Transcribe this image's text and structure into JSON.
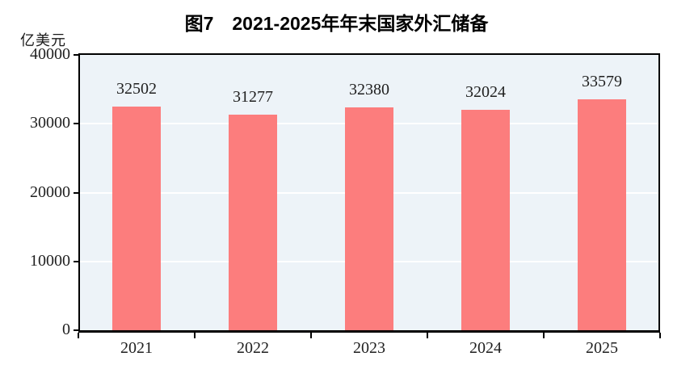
{
  "figure": {
    "title": "图7　2021-2025年年末国家外汇储备",
    "unit_label": "亿美元"
  },
  "colors": {
    "bar": "#FC7D7D",
    "plot_bg": "#EDF3F8",
    "gridline": "#FFFFFF",
    "axis": "#000000",
    "text": "#1F1F1F"
  },
  "chart_data": {
    "type": "bar",
    "title": "图7 2021-2025年年末国家外汇储备",
    "categories": [
      "2021",
      "2022",
      "2023",
      "2024",
      "2025"
    ],
    "values": [
      32502,
      31277,
      32380,
      32024,
      33579
    ],
    "data_labels": [
      "32502",
      "31277",
      "32380",
      "32024",
      "33579"
    ],
    "xlabel": "",
    "ylabel": "亿美元",
    "ylim": [
      0,
      40000
    ],
    "yticks": [
      0,
      10000,
      20000,
      30000,
      40000
    ],
    "ytick_labels": [
      "0",
      "10000",
      "20000",
      "30000",
      "40000"
    ],
    "grid": true,
    "gridlines_at": [
      10000,
      20000,
      30000
    ],
    "legend": false,
    "data_labels_position": "above-bar"
  }
}
